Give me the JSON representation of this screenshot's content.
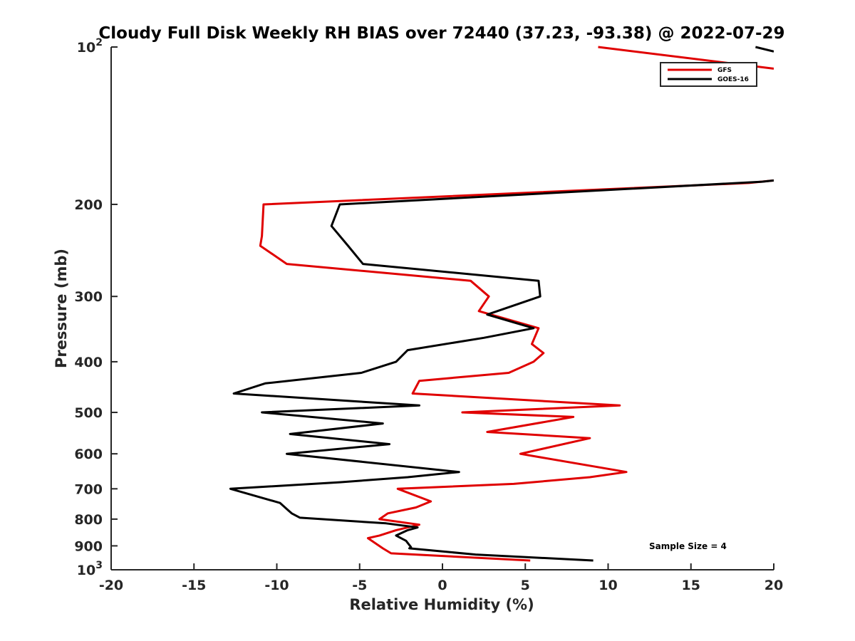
{
  "chart_data": {
    "type": "line",
    "title": "Cloudy Full Disk Weekly RH BIAS over 72440 (37.23, -93.38) @ 2022-07-29",
    "xlabel": "Relative Humidity (%)",
    "ylabel": "Pressure (mb)",
    "xlim": [
      -20,
      20
    ],
    "ylim": [
      100,
      1000
    ],
    "y_scale": "log",
    "y_reversed": true,
    "x_ticks": [
      "-20",
      "-15",
      "-10",
      "-5",
      "0",
      "5",
      "10",
      "15",
      "20"
    ],
    "y_ticks": [
      {
        "value": 100,
        "base": "10",
        "exp": "2"
      },
      {
        "value": 200,
        "label": "200"
      },
      {
        "value": 300,
        "label": "300"
      },
      {
        "value": 400,
        "label": "400"
      },
      {
        "value": 500,
        "label": "500"
      },
      {
        "value": 600,
        "label": "600"
      },
      {
        "value": 700,
        "label": "700"
      },
      {
        "value": 800,
        "label": "800"
      },
      {
        "value": 900,
        "label": "900"
      },
      {
        "value": 1000,
        "base": "10",
        "exp": "3"
      }
    ],
    "grid": false,
    "legend_position": "top-right",
    "annotation": "Sample Size = 4",
    "series": [
      {
        "name": "GFS",
        "color": "#e00000",
        "segments": [
          [
            [
              9.4,
              100
            ],
            [
              20,
              110
            ]
          ],
          [
            [
              20,
              180
            ],
            [
              18.5,
              182
            ],
            [
              -10.8,
              200
            ],
            [
              -10.9,
              230
            ],
            [
              -11.0,
              240
            ],
            [
              -9.4,
              260
            ],
            [
              1.7,
              280
            ],
            [
              2.8,
              300
            ],
            [
              2.2,
              320
            ],
            [
              5.8,
              345
            ],
            [
              5.4,
              370
            ],
            [
              6.1,
              385
            ],
            [
              5.5,
              400
            ],
            [
              4.0,
              420
            ],
            [
              -1.4,
              435
            ],
            [
              -1.8,
              460
            ],
            [
              10.7,
              485
            ],
            [
              1.2,
              500
            ],
            [
              7.9,
              510
            ],
            [
              2.7,
              545
            ],
            [
              8.9,
              560
            ],
            [
              4.7,
              600
            ],
            [
              11.1,
              650
            ],
            [
              8.9,
              665
            ],
            [
              4.3,
              685
            ],
            [
              -2.7,
              700
            ],
            [
              -0.7,
              740
            ],
            [
              -1.6,
              760
            ],
            [
              -3.3,
              780
            ],
            [
              -3.8,
              800
            ],
            [
              -1.4,
              820
            ],
            [
              -2.8,
              840
            ],
            [
              -3.8,
              860
            ],
            [
              -4.5,
              870
            ],
            [
              -3.6,
              910
            ],
            [
              -3.1,
              930
            ],
            [
              5.3,
              960
            ]
          ]
        ]
      },
      {
        "name": "GOES-16",
        "color": "#000000",
        "segments": [
          [
            [
              18.9,
              100
            ],
            [
              20,
              102
            ]
          ],
          [
            [
              20,
              180
            ],
            [
              19.3,
              181
            ],
            [
              -6.2,
              200
            ],
            [
              -6.7,
              220
            ],
            [
              -5.7,
              240
            ],
            [
              -4.8,
              260
            ],
            [
              5.8,
              280
            ],
            [
              5.9,
              300
            ],
            [
              2.7,
              325
            ],
            [
              5.5,
              345
            ],
            [
              2.5,
              360
            ],
            [
              -2.1,
              380
            ],
            [
              -2.8,
              400
            ],
            [
              -4.9,
              420
            ],
            [
              -10.7,
              440
            ],
            [
              -12.6,
              460
            ],
            [
              -1.4,
              485
            ],
            [
              -10.9,
              500
            ],
            [
              -3.6,
              525
            ],
            [
              -9.2,
              550
            ],
            [
              -3.2,
              575
            ],
            [
              -9.4,
              600
            ],
            [
              1.0,
              650
            ],
            [
              -2.1,
              665
            ],
            [
              -6.2,
              680
            ],
            [
              -12.8,
              700
            ],
            [
              -9.8,
              745
            ],
            [
              -9.3,
              770
            ],
            [
              -9.1,
              780
            ],
            [
              -8.6,
              795
            ],
            [
              -3.4,
              815
            ],
            [
              -1.5,
              830
            ],
            [
              -2.1,
              840
            ],
            [
              -2.8,
              860
            ],
            [
              -2.2,
              880
            ],
            [
              -1.9,
              905
            ],
            [
              -2.0,
              910
            ],
            [
              2.0,
              935
            ],
            [
              9.1,
              960
            ]
          ]
        ]
      }
    ]
  }
}
